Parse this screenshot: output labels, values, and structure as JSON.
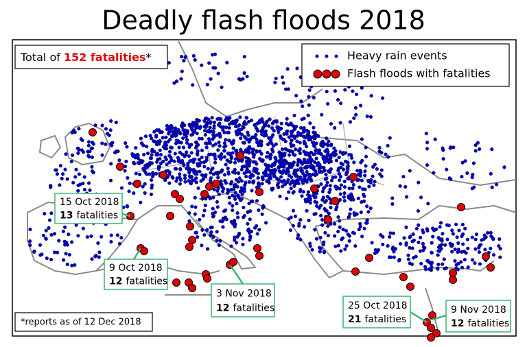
{
  "title": "Deadly flash floods 2018",
  "total": {
    "prefix": "Total of",
    "highlight": "152 fatalities",
    "suffix": "*"
  },
  "legend": {
    "items": [
      "Heavy rain events",
      "Flash floods with fatalities"
    ]
  },
  "callouts": [
    {
      "date": "15 Oct 2018",
      "count": 13,
      "unit": "fatalities"
    },
    {
      "date": "9 Oct 2018",
      "count": 12,
      "unit": "fatalities"
    },
    {
      "date": "3 Nov 2018",
      "count": 12,
      "unit": "fatalities"
    },
    {
      "date": "25 Oct 2018",
      "count": 21,
      "unit": "fatalities"
    },
    {
      "date": "9 Nov 2018",
      "count": 12,
      "unit": "fatalities"
    }
  ],
  "footnote": "*reports as of 12 Dec 2018"
}
